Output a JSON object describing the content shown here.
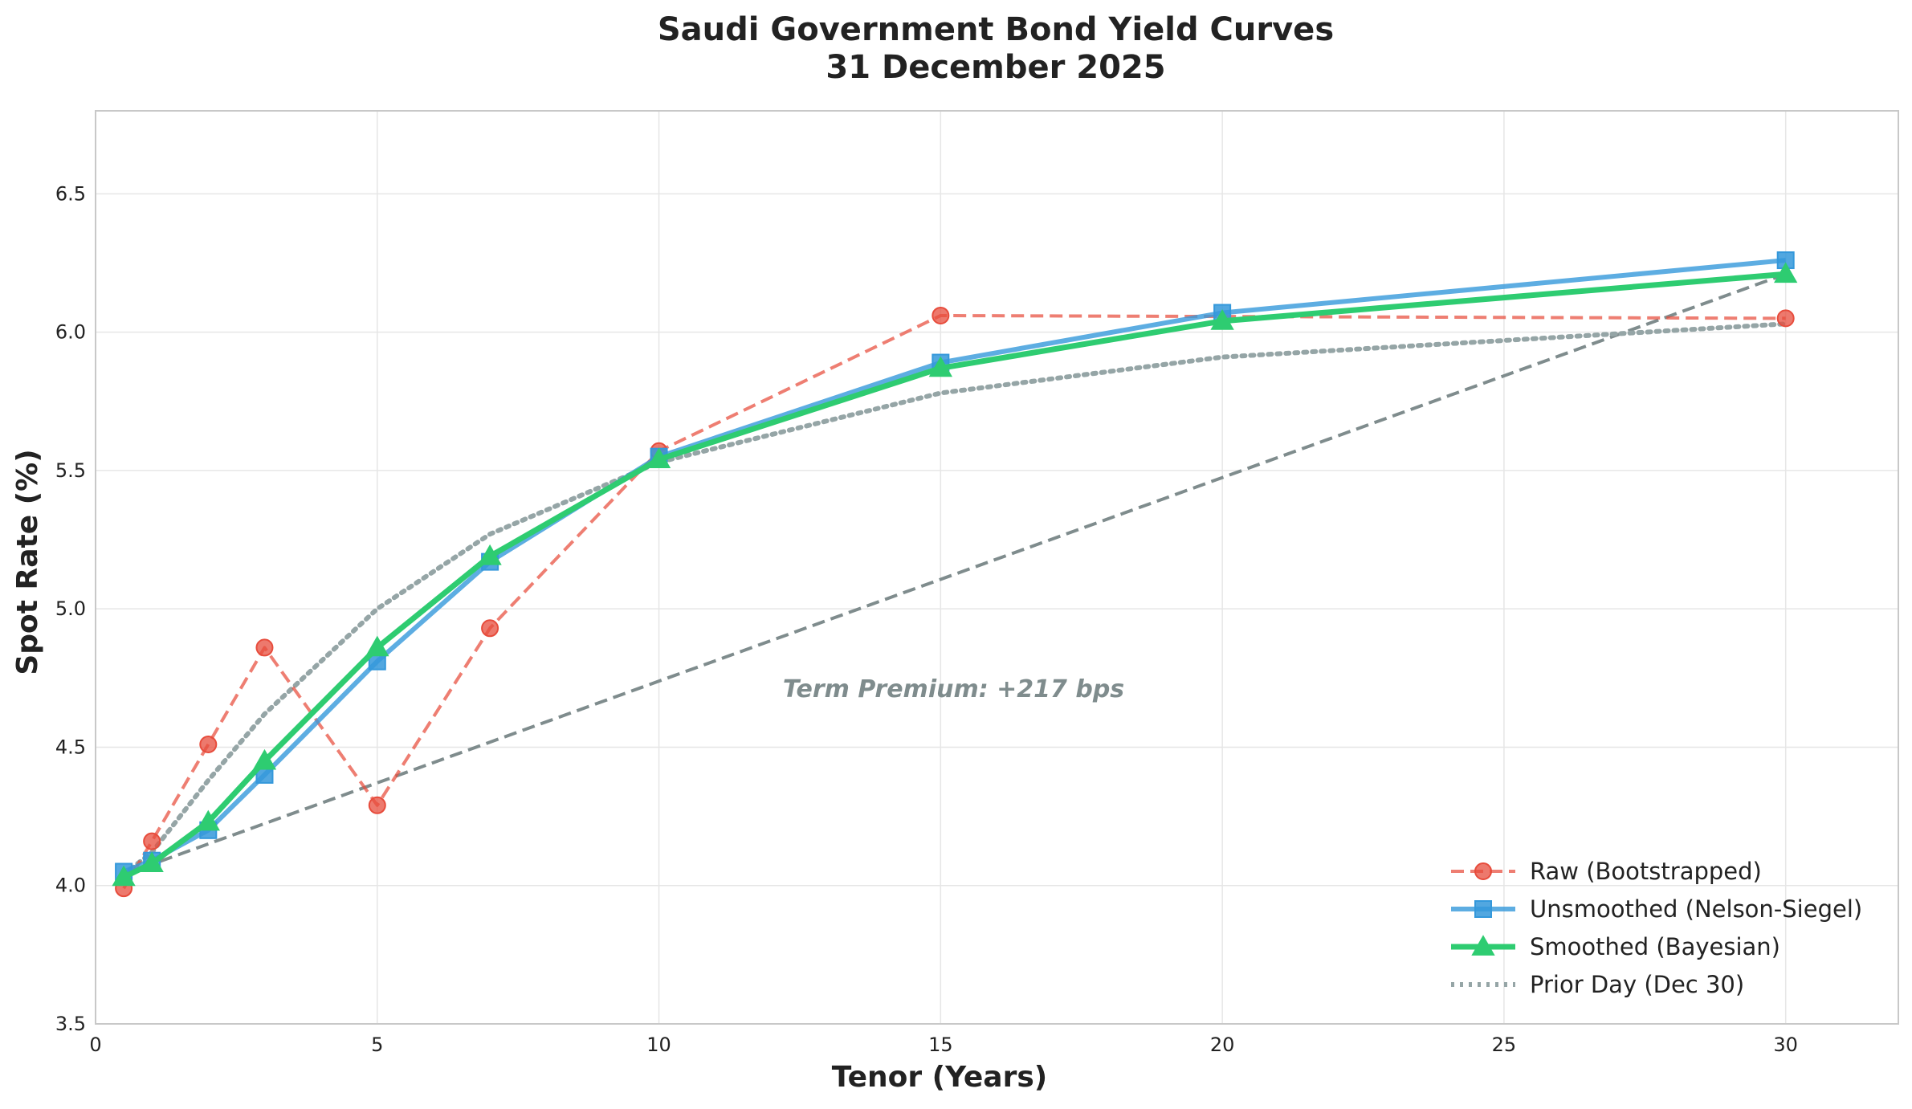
{
  "chart_data": {
    "type": "line",
    "title": "Saudi Government Bond Yield Curves",
    "subtitle": "31 December 2025",
    "xlabel": "Tenor (Years)",
    "ylabel": "Spot Rate (%)",
    "xlim": [
      0,
      32
    ],
    "ylim": [
      3.5,
      6.8
    ],
    "xticks": [
      0,
      5,
      10,
      15,
      20,
      25,
      30
    ],
    "yticks": [
      3.5,
      4.0,
      4.5,
      5.0,
      5.5,
      6.0,
      6.5
    ],
    "grid": true,
    "legend_position": "lower-right",
    "series": [
      {
        "name": "Raw (Bootstrapped)",
        "color": "#e74c3c",
        "style": "dashed",
        "marker": "circle",
        "x": [
          0.5,
          1,
          2,
          3,
          5,
          7,
          10,
          15,
          30
        ],
        "y": [
          3.99,
          4.16,
          4.51,
          4.86,
          4.29,
          4.93,
          5.57,
          6.06,
          6.05
        ]
      },
      {
        "name": "Unsmoothed (Nelson-Siegel)",
        "color": "#3498db",
        "style": "solid",
        "marker": "square",
        "x": [
          0.5,
          1,
          2,
          3,
          5,
          7,
          10,
          15,
          20,
          30
        ],
        "y": [
          4.05,
          4.09,
          4.2,
          4.4,
          4.81,
          5.17,
          5.55,
          5.89,
          6.07,
          6.26
        ]
      },
      {
        "name": "Smoothed (Bayesian)",
        "color": "#2ecc71",
        "style": "solid",
        "marker": "triangle",
        "x": [
          0.5,
          1,
          2,
          3,
          5,
          7,
          10,
          15,
          20,
          30
        ],
        "y": [
          4.03,
          4.08,
          4.23,
          4.45,
          4.86,
          5.19,
          5.54,
          5.87,
          6.04,
          6.21
        ]
      },
      {
        "name": "Prior Day (Dec 30)",
        "color": "#95a5a6",
        "style": "dotted",
        "marker": "none",
        "x": [
          0.5,
          1,
          2,
          3,
          5,
          7,
          10,
          15,
          20,
          30
        ],
        "y": [
          4.04,
          4.12,
          4.38,
          4.62,
          5.0,
          5.27,
          5.53,
          5.78,
          5.91,
          6.03
        ]
      }
    ],
    "reference_line": {
      "color": "#7f8c8d",
      "style": "dashed",
      "x": [
        0.5,
        30
      ],
      "y": [
        4.04,
        6.21
      ]
    },
    "annotation": {
      "text": "Term Premium: +217 bps",
      "x": 12.2,
      "y": 4.71
    }
  }
}
